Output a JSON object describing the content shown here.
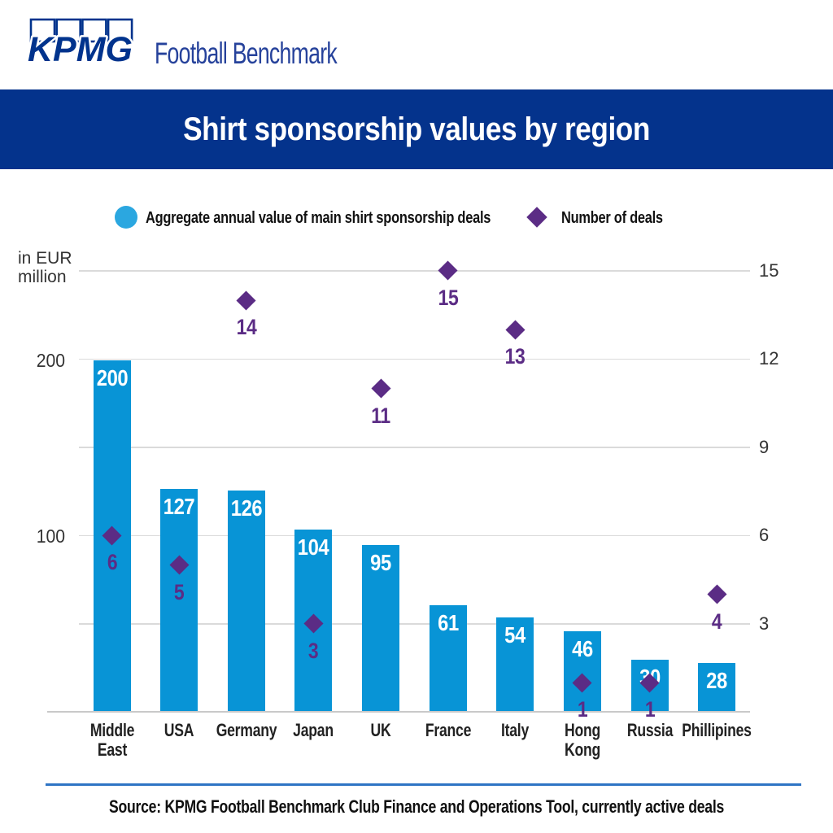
{
  "header": {
    "brand": "KPMG",
    "product": "Football Benchmark"
  },
  "banner": {
    "title": "Shirt sponsorship values by region"
  },
  "legend": {
    "items": [
      {
        "label": "Aggregate annual value of main shirt sponsorship deals",
        "marker": "circle",
        "color": "#2BA7E0"
      },
      {
        "label": "Number of deals",
        "marker": "diamond",
        "color": "#5B2C85"
      }
    ]
  },
  "chart_data": {
    "type": "bar",
    "title": "Shirt sponsorship values by region",
    "categories": [
      "Middle\nEast",
      "USA",
      "Germany",
      "Japan",
      "UK",
      "France",
      "Italy",
      "Hong\nKong",
      "Russia",
      "Phillipines"
    ],
    "series": [
      {
        "name": "Aggregate annual value of main shirt sponsorship deals",
        "type": "bar",
        "axis": "left",
        "color": "#0894D6",
        "values": [
          200,
          127,
          126,
          104,
          95,
          61,
          54,
          46,
          30,
          28
        ]
      },
      {
        "name": "Number of deals",
        "type": "scatter",
        "marker": "diamond",
        "axis": "right",
        "color": "#5B2C85",
        "values": [
          6,
          5,
          14,
          3,
          11,
          15,
          13,
          1,
          1,
          4
        ]
      }
    ],
    "left_axis": {
      "unit_label": "in EUR\nmillion",
      "ticks": [
        200,
        100
      ],
      "range": [
        0,
        250
      ]
    },
    "right_axis": {
      "ticks": [
        15,
        12,
        9,
        6,
        3
      ],
      "range": [
        0,
        15
      ]
    },
    "grid": true,
    "legend_position": "top"
  },
  "footer": {
    "source": "Source: KPMG Football Benchmark Club Finance and Operations Tool, currently active deals"
  }
}
